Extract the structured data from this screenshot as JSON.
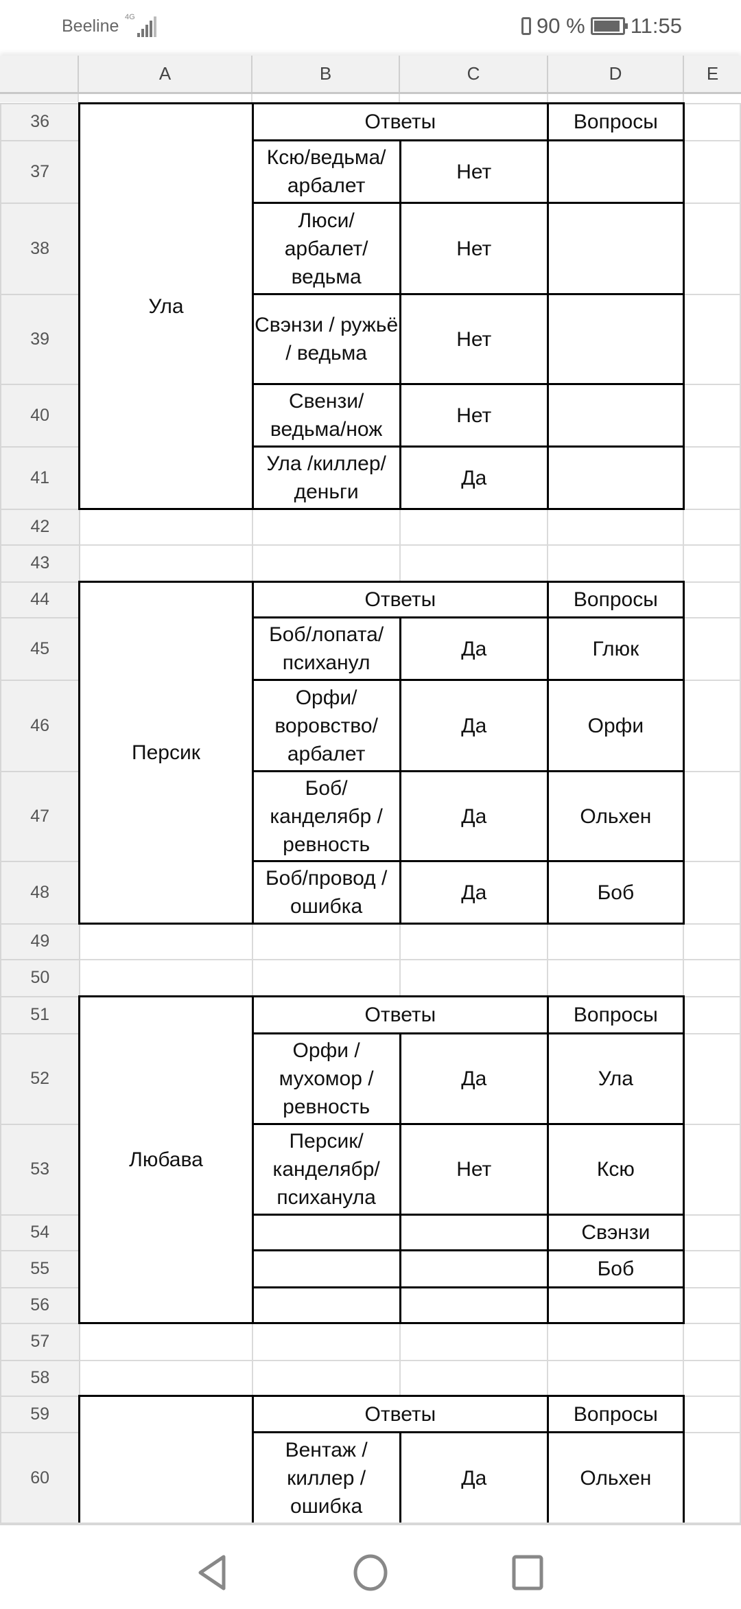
{
  "status_bar": {
    "carrier": "Beeline",
    "network": "4G",
    "battery": "90 %",
    "time": "11:55"
  },
  "columns": [
    "A",
    "B",
    "C",
    "D",
    "E"
  ],
  "sheet": {
    "first_row": 36,
    "last_row": 60,
    "blocks": [
      {
        "start": 36,
        "name": "Ула",
        "answers_header": "Ответы",
        "questions_header": "Вопросы",
        "rows": [
          {
            "b": "Ксю/ведьма/ арбалет",
            "c": "Нет",
            "d": ""
          },
          {
            "b": "Люси/ арбалет/ ведьма",
            "c": "Нет",
            "d": ""
          },
          {
            "b": "Свэнзи / ружьё / ведьма",
            "c": "Нет",
            "d": ""
          },
          {
            "b": "Свензи/ ведьма/нож",
            "c": "Нет",
            "d": ""
          },
          {
            "b": "Ула /киллер/ деньги",
            "c": "Да",
            "d": ""
          }
        ]
      },
      {
        "start": 44,
        "name": "Персик",
        "answers_header": "Ответы",
        "questions_header": "Вопросы",
        "rows": [
          {
            "b": "Боб/лопата/ психанул",
            "c": "Да",
            "d": "Глюк"
          },
          {
            "b": "Орфи/ воровство/ арбалет",
            "c": "Да",
            "d": "Орфи"
          },
          {
            "b": "Боб/ канделябр / ревность",
            "c": "Да",
            "d": "Ольхен"
          },
          {
            "b": "Боб/провод / ошибка",
            "c": "Да",
            "d": "Боб"
          }
        ]
      },
      {
        "start": 51,
        "name": "Любава",
        "answers_header": "Ответы",
        "questions_header": "Вопросы",
        "rows": [
          {
            "b": "Орфи / мухомор / ревность",
            "c": "Да",
            "d": "Ула"
          },
          {
            "b": "Персик/ канделябр/ психанула",
            "c": "Нет",
            "d": "Ксю"
          },
          {
            "b": "",
            "c": "",
            "d": "Свэнзи"
          },
          {
            "b": "",
            "c": "",
            "d": "Боб"
          },
          {
            "b": "",
            "c": "",
            "d": ""
          }
        ]
      },
      {
        "start": 59,
        "name": "",
        "answers_header": "Ответы",
        "questions_header": "Вопросы",
        "cut_off": true,
        "rows": [
          {
            "b": "Вентаж / киллер / ошибка",
            "c": "Да",
            "d": "Ольхен"
          }
        ]
      }
    ]
  }
}
